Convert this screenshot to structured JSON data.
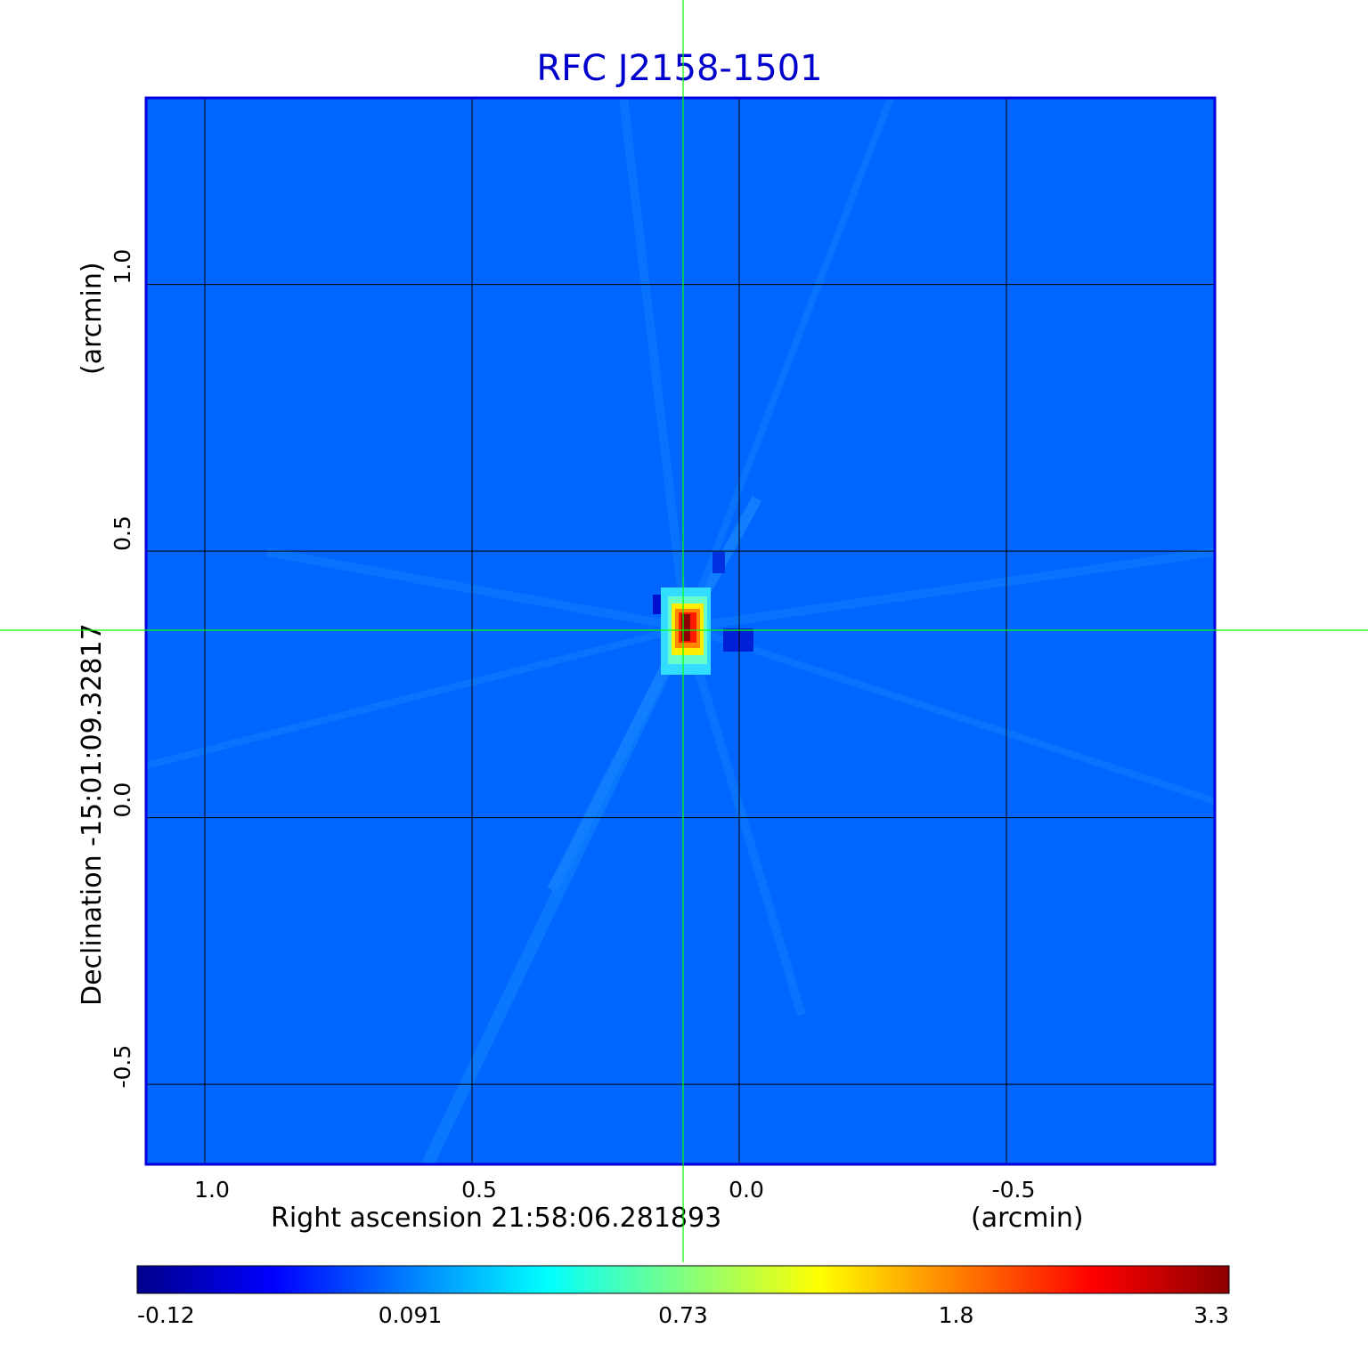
{
  "chart_data": {
    "type": "heatmap",
    "title": "RFC J2158-1501",
    "xlabel": "Right ascension  21:58:06.281893",
    "xunit": "(arcmin)",
    "ylabel": "Declination  -15:01:09.32817",
    "yunit": "(arcmin)",
    "x_ticks": [
      "1.0",
      "0.5",
      "0.0",
      "-0.5"
    ],
    "x_tick_values": [
      1.0,
      0.5,
      0.0,
      -0.5
    ],
    "y_ticks": [
      "1.0",
      "0.5",
      "0.0",
      "-0.5"
    ],
    "y_tick_values": [
      1.0,
      0.5,
      0.0,
      -0.5
    ],
    "xlim": [
      1.11,
      -0.89
    ],
    "ylim": [
      -0.65,
      1.35
    ],
    "grid": true,
    "colormap": "jet",
    "colorbar": {
      "tick_labels": [
        "-0.12",
        "0.091",
        "0.73",
        "1.8",
        "3.3"
      ],
      "range": [
        -0.12,
        3.3
      ],
      "stops": [
        "#00008b",
        "#0000ff",
        "#0080ff",
        "#00ffff",
        "#80ff80",
        "#ffff00",
        "#ff8000",
        "#ff0000",
        "#8b0000"
      ]
    },
    "peak": {
      "x": 0.106,
      "y": 0.35,
      "value": 3.3
    },
    "crosshair_color": "#00ff00",
    "background_color": "#0066ff",
    "title_color": "#0000cc"
  }
}
